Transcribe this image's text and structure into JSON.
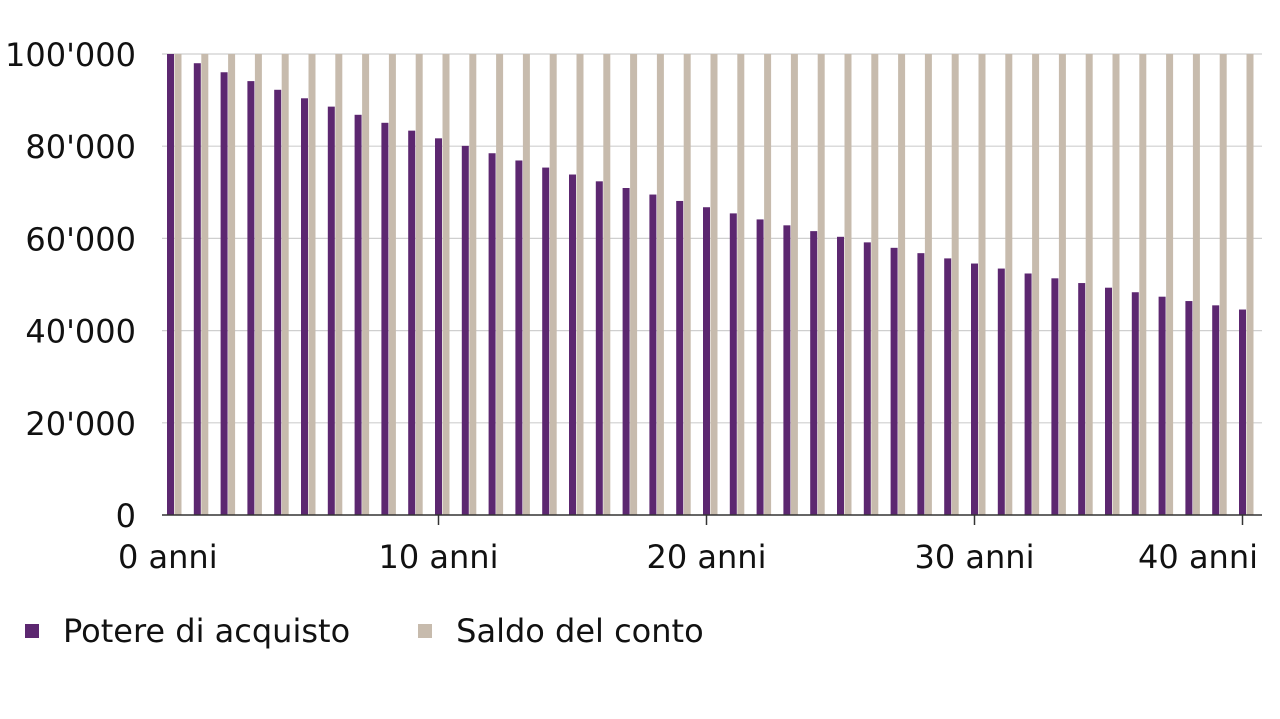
{
  "chart_data": {
    "type": "bar",
    "title": "",
    "xlabel": "",
    "ylabel": "",
    "ylim": [
      0,
      100000
    ],
    "grid": true,
    "legend_position": "bottom-left",
    "y_ticks": [
      "0",
      "20'000",
      "40'000",
      "60'000",
      "80'000",
      "100'000"
    ],
    "y_tick_values": [
      0,
      20000,
      40000,
      60000,
      80000,
      100000
    ],
    "x_tick_labels": [
      "0 anni",
      "10 anni",
      "20 anni",
      "30 anni",
      "40 anni"
    ],
    "x_tick_positions": [
      0,
      10,
      20,
      30,
      40
    ],
    "categories": [
      0,
      1,
      2,
      3,
      4,
      5,
      6,
      7,
      8,
      9,
      10,
      11,
      12,
      13,
      14,
      15,
      16,
      17,
      18,
      19,
      20,
      21,
      22,
      23,
      24,
      25,
      26,
      27,
      28,
      29,
      30,
      31,
      32,
      33,
      34,
      35,
      36,
      37,
      38,
      39,
      40
    ],
    "series": [
      {
        "name": "Potere di acquisto",
        "color": "#5c2770",
        "values": [
          100000,
          98000,
          96040,
          94119,
          92237,
          90392,
          88584,
          86813,
          85076,
          83375,
          81707,
          80073,
          78472,
          76902,
          75364,
          73857,
          72380,
          70932,
          69513,
          68123,
          66761,
          65426,
          64117,
          62835,
          61578,
          60346,
          59140,
          57957,
          56798,
          55662,
          54548,
          53457,
          52388,
          51341,
          50314,
          49307,
          48321,
          47355,
          46408,
          45479,
          44570
        ]
      },
      {
        "name": "Saldo del conto",
        "color": "#c7bbad",
        "values": [
          100000,
          100000,
          100000,
          100000,
          100000,
          100000,
          100000,
          100000,
          100000,
          100000,
          100000,
          100000,
          100000,
          100000,
          100000,
          100000,
          100000,
          100000,
          100000,
          100000,
          100000,
          100000,
          100000,
          100000,
          100000,
          100000,
          100000,
          100000,
          100000,
          100000,
          100000,
          100000,
          100000,
          100000,
          100000,
          100000,
          100000,
          100000,
          100000,
          100000,
          100000
        ]
      }
    ]
  },
  "legend": {
    "items": [
      {
        "label": "Potere di acquisto",
        "color": "#5c2770"
      },
      {
        "label": "Saldo del conto",
        "color": "#c7bbad"
      }
    ]
  }
}
